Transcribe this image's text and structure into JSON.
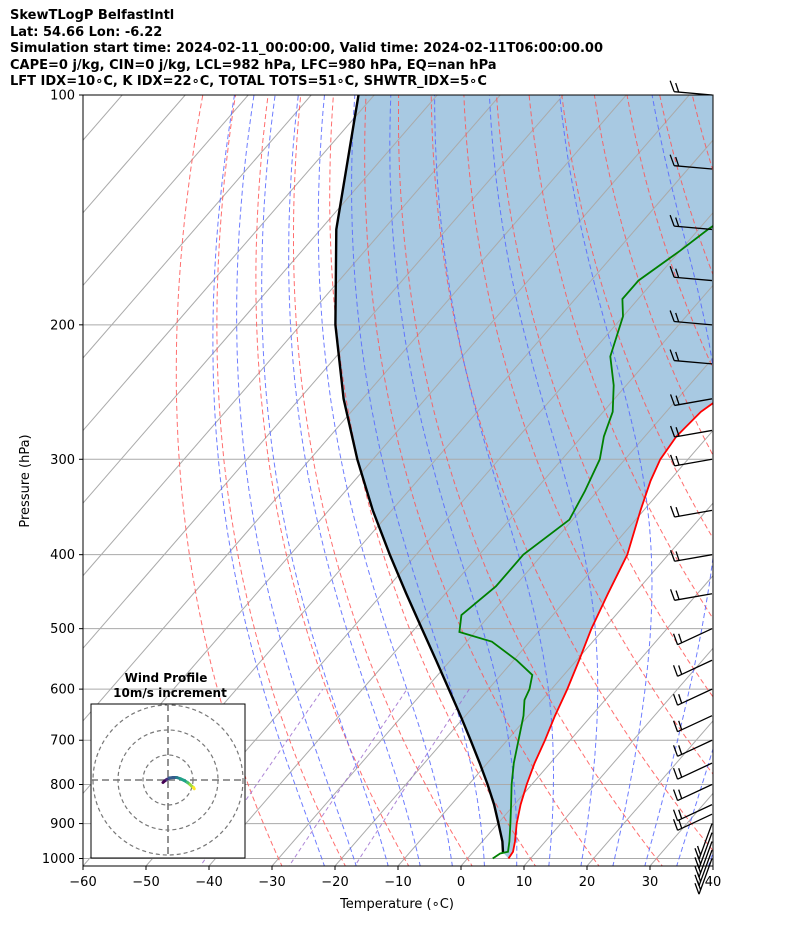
{
  "header": {
    "line1": "SkewTLogP BelfastIntl",
    "line2": "Lat: 54.66   Lon: -6.22",
    "line3": "Simulation start time: 2024-02-11_00:00:00, Valid time: 2024-02-11T06:00:00.00",
    "line4": "CAPE=0 j/kg, CIN=0 j/kg, LCL=982 hPa, LFC=980 hPa, EQ=nan hPa",
    "line5": "LFT IDX=10∘C, K IDX=22∘C, TOTAL TOTS=51∘C, SHWTR_IDX=5∘C"
  },
  "chart_data": {
    "type": "line",
    "subtype": "skew-t log-p diagram",
    "xlabel": "Temperature (∘C)",
    "ylabel": "Pressure (hPa)",
    "xlim": [
      -60,
      40
    ],
    "ylim": [
      1050,
      100
    ],
    "y_scale": "log",
    "xticks": [
      -60,
      -50,
      -40,
      -30,
      -20,
      -10,
      0,
      10,
      20,
      30,
      40
    ],
    "xtick_labels": [
      "−60",
      "−50",
      "−40",
      "−30",
      "−20",
      "−10",
      "0",
      "10",
      "20",
      "30",
      "40"
    ],
    "yticks": [
      1000,
      900,
      800,
      700,
      600,
      500,
      400,
      300,
      200,
      100
    ],
    "ytick_labels": [
      "1000",
      "900",
      "800",
      "700",
      "600",
      "500",
      "400",
      "300",
      "200",
      "100"
    ],
    "grid": true,
    "series": [
      {
        "role": "temperature",
        "color": "#ff0000",
        "points": [
          [
            1000,
            6.5
          ],
          [
            980,
            6.3
          ],
          [
            950,
            5.2
          ],
          [
            900,
            3.0
          ],
          [
            850,
            1.0
          ],
          [
            800,
            -0.8
          ],
          [
            750,
            -2.5
          ],
          [
            700,
            -4.0
          ],
          [
            650,
            -5.8
          ],
          [
            600,
            -7.5
          ],
          [
            550,
            -9.6
          ],
          [
            500,
            -12.0
          ],
          [
            450,
            -14.2
          ],
          [
            400,
            -16.5
          ],
          [
            350,
            -20.5
          ],
          [
            320,
            -23.0
          ],
          [
            300,
            -24.4
          ],
          [
            280,
            -25.0
          ],
          [
            260,
            -24.5
          ],
          [
            240,
            -22.3
          ],
          [
            220,
            -17.5
          ],
          [
            200,
            -11.7
          ],
          [
            185,
            -7.9
          ],
          [
            170,
            -5.3
          ],
          [
            160,
            -4.0
          ],
          [
            150,
            -3.0
          ],
          [
            140,
            -2.3
          ],
          [
            130,
            -1.8
          ],
          [
            120,
            -1.3
          ],
          [
            110,
            -0.8
          ],
          [
            100,
            -0.4
          ]
        ]
      },
      {
        "role": "dewpoint",
        "color": "#008000",
        "points": [
          [
            1000,
            4.0
          ],
          [
            985,
            4.5
          ],
          [
            980,
            5.5
          ],
          [
            950,
            4.3
          ],
          [
            900,
            2.0
          ],
          [
            850,
            -0.5
          ],
          [
            800,
            -3.2
          ],
          [
            750,
            -5.8
          ],
          [
            700,
            -8.2
          ],
          [
            650,
            -10.8
          ],
          [
            620,
            -12.8
          ],
          [
            600,
            -13.5
          ],
          [
            575,
            -15.0
          ],
          [
            550,
            -19.5
          ],
          [
            520,
            -26.0
          ],
          [
            505,
            -32.5
          ],
          [
            480,
            -34.5
          ],
          [
            440,
            -33.0
          ],
          [
            400,
            -33.0
          ],
          [
            360,
            -30.5
          ],
          [
            330,
            -32.0
          ],
          [
            300,
            -34.0
          ],
          [
            280,
            -36.5
          ],
          [
            260,
            -38.5
          ],
          [
            240,
            -42.0
          ],
          [
            220,
            -46.5
          ],
          [
            195,
            -50.0
          ],
          [
            185,
            -52.5
          ],
          [
            175,
            -52.5
          ],
          [
            160,
            -50.0
          ],
          [
            150,
            -48.5
          ],
          [
            130,
            -44.0
          ],
          [
            110,
            -38.0
          ],
          [
            100,
            -34.5
          ]
        ]
      },
      {
        "role": "parcel profile",
        "color": "#000000",
        "points": [
          [
            982,
            4.8
          ],
          [
            950,
            3.2
          ],
          [
            900,
            0.1
          ],
          [
            850,
            -3.2
          ],
          [
            800,
            -7.0
          ],
          [
            750,
            -11.2
          ],
          [
            700,
            -15.8
          ],
          [
            650,
            -20.8
          ],
          [
            600,
            -26.3
          ],
          [
            550,
            -32.3
          ],
          [
            500,
            -38.9
          ],
          [
            450,
            -46.2
          ],
          [
            400,
            -54.2
          ],
          [
            350,
            -63.0
          ],
          [
            300,
            -72.5
          ],
          [
            250,
            -83.0
          ],
          [
            200,
            -94.5
          ],
          [
            150,
            -107.5
          ],
          [
            100,
            -122.5
          ]
        ]
      }
    ],
    "shaded_region": {
      "between": [
        "temperature",
        "parcel profile"
      ],
      "color": "#a3c6e0"
    },
    "reference_lines": {
      "isotherms": {
        "color": "#aaaaaa",
        "spacing_c": 10
      },
      "dry_adiabats": {
        "color": "#ff6666",
        "style": "dashed"
      },
      "moist_adiabats": {
        "color": "#5566ff",
        "style": "dashed"
      },
      "mixing_ratio": {
        "color": "#9966cc",
        "style": "dashed"
      }
    },
    "wind_barbs": {
      "color": "#000000",
      "levels_hpa": [
        1000,
        975,
        950,
        925,
        900,
        875,
        850,
        800,
        750,
        700,
        650,
        600,
        550,
        500,
        450,
        400,
        350,
        300,
        275,
        250,
        225,
        200,
        175,
        150,
        125,
        100
      ]
    },
    "inset": {
      "title": "Wind Profile",
      "subtitle": "10m/s increment",
      "type": "hodograph",
      "u_v_points": [
        [
          -2,
          -1
        ],
        [
          -1.5,
          -0.5
        ],
        [
          -0.5,
          0.2
        ],
        [
          0.5,
          0.8
        ],
        [
          2.0,
          1.0
        ],
        [
          3.5,
          1.0
        ],
        [
          5.0,
          0.5
        ],
        [
          6.5,
          -0.2
        ],
        [
          7.8,
          -1.0
        ],
        [
          8.8,
          -1.8
        ],
        [
          9.5,
          -2.5
        ],
        [
          10.2,
          -3.0
        ],
        [
          10.5,
          -3.5
        ]
      ],
      "colormap": "viridis"
    }
  }
}
